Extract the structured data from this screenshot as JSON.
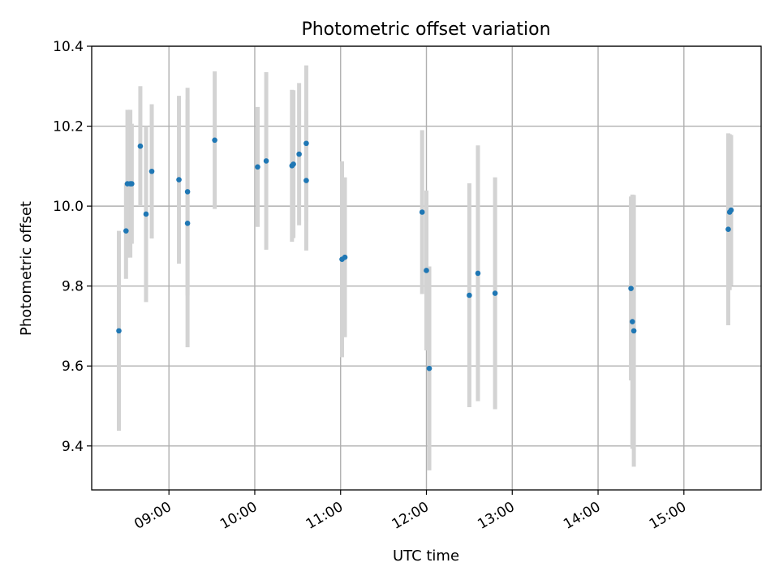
{
  "chart_data": {
    "type": "scatter",
    "title": "Photometric offset variation",
    "xlabel": "UTC time",
    "ylabel": "Photometric offset",
    "x_unit": "time of day (UTC)",
    "xlim": [
      "08:06",
      "15:54"
    ],
    "ylim": [
      9.29,
      10.4
    ],
    "x_ticks": [
      "09:00",
      "10:00",
      "11:00",
      "12:00",
      "13:00",
      "14:00",
      "15:00"
    ],
    "y_ticks": [
      9.4,
      9.6,
      9.8,
      10.0,
      10.2,
      10.4
    ],
    "grid": true,
    "colors": {
      "point": "#1f77b4",
      "errorbar": "#d3d3d3"
    },
    "series": [
      {
        "points": [
          {
            "t": "08:25",
            "y": 9.688,
            "err": 0.25
          },
          {
            "t": "08:30",
            "y": 9.938,
            "err": 0.12
          },
          {
            "t": "08:31",
            "y": 10.056,
            "err": 0.185
          },
          {
            "t": "08:33",
            "y": 10.056,
            "err": 0.185
          },
          {
            "t": "08:34",
            "y": 10.056,
            "err": 0.15
          },
          {
            "t": "08:40",
            "y": 10.15,
            "err": 0.15
          },
          {
            "t": "08:44",
            "y": 9.98,
            "err": 0.22
          },
          {
            "t": "08:48",
            "y": 10.087,
            "err": 0.168
          },
          {
            "t": "09:07",
            "y": 10.066,
            "err": 0.21
          },
          {
            "t": "09:13",
            "y": 10.036,
            "err": 0.26
          },
          {
            "t": "09:13",
            "y": 9.957,
            "err": 0.31
          },
          {
            "t": "09:32",
            "y": 10.165,
            "err": 0.172
          },
          {
            "t": "10:02",
            "y": 10.098,
            "err": 0.15
          },
          {
            "t": "10:08",
            "y": 10.113,
            "err": 0.222
          },
          {
            "t": "10:26",
            "y": 10.101,
            "err": 0.19
          },
          {
            "t": "10:27",
            "y": 10.105,
            "err": 0.185
          },
          {
            "t": "10:31",
            "y": 10.13,
            "err": 0.178
          },
          {
            "t": "10:36",
            "y": 10.157,
            "err": 0.195
          },
          {
            "t": "10:36",
            "y": 10.064,
            "err": 0.175
          },
          {
            "t": "11:01",
            "y": 9.867,
            "err": 0.245
          },
          {
            "t": "11:03",
            "y": 9.872,
            "err": 0.2
          },
          {
            "t": "11:57",
            "y": 9.985,
            "err": 0.205
          },
          {
            "t": "12:00",
            "y": 9.839,
            "err": 0.2
          },
          {
            "t": "12:02",
            "y": 9.594,
            "err": 0.255
          },
          {
            "t": "12:30",
            "y": 9.777,
            "err": 0.28
          },
          {
            "t": "12:36",
            "y": 9.832,
            "err": 0.32
          },
          {
            "t": "12:48",
            "y": 9.782,
            "err": 0.29
          },
          {
            "t": "14:23",
            "y": 9.794,
            "err": 0.23
          },
          {
            "t": "14:24",
            "y": 9.711,
            "err": 0.318
          },
          {
            "t": "14:25",
            "y": 9.688,
            "err": 0.34
          },
          {
            "t": "15:31",
            "y": 9.942,
            "err": 0.24
          },
          {
            "t": "15:32",
            "y": 9.985,
            "err": 0.195
          },
          {
            "t": "15:33",
            "y": 9.99,
            "err": 0.188
          }
        ]
      }
    ]
  }
}
